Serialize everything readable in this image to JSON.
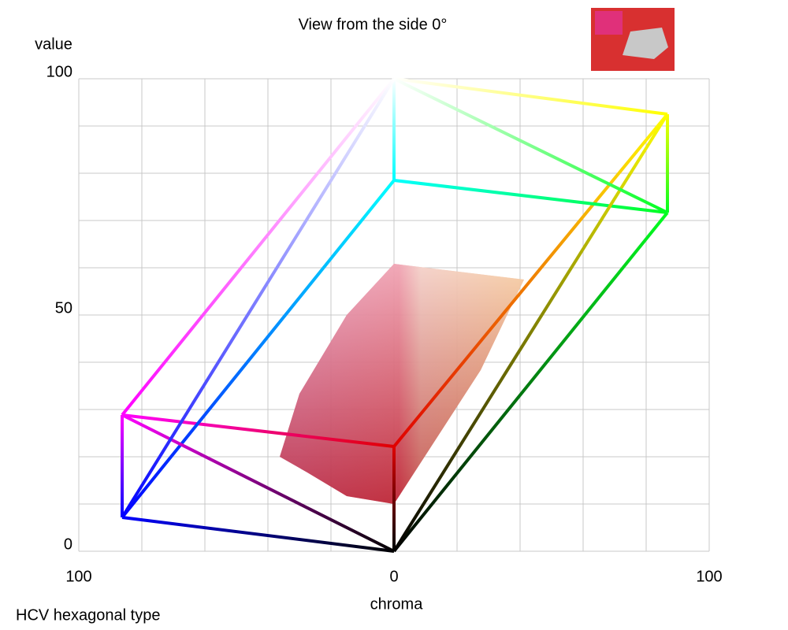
{
  "chart_data": {
    "type": "hcv-side-view",
    "title": "View from the side 0°",
    "x_label": "chroma",
    "y_label": "value",
    "caption": "HCV hexagonal type",
    "xlim": [
      -100,
      100
    ],
    "ylim": [
      0,
      100
    ],
    "xticks": [
      {
        "value": -100,
        "label": "100"
      },
      0,
      100
    ],
    "yticks": [
      0,
      50,
      100
    ],
    "xgrid": [
      -100,
      -80,
      -60,
      -40,
      -20,
      0,
      20,
      40,
      60,
      80,
      100
    ],
    "ygrid": [
      0,
      10,
      20,
      30,
      40,
      50,
      60,
      70,
      80,
      90,
      100
    ],
    "grid": true
  }
}
